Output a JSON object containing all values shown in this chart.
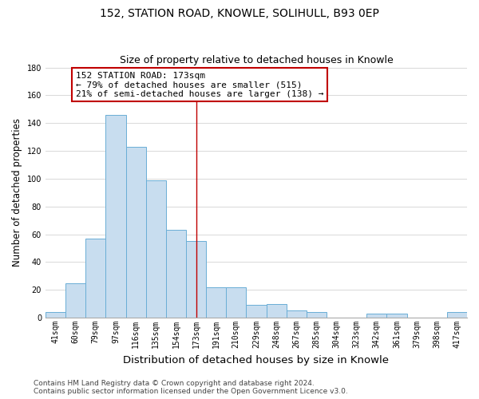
{
  "title": "152, STATION ROAD, KNOWLE, SOLIHULL, B93 0EP",
  "subtitle": "Size of property relative to detached houses in Knowle",
  "xlabel": "Distribution of detached houses by size in Knowle",
  "ylabel": "Number of detached properties",
  "bin_labels": [
    "41sqm",
    "60sqm",
    "79sqm",
    "97sqm",
    "116sqm",
    "135sqm",
    "154sqm",
    "173sqm",
    "191sqm",
    "210sqm",
    "229sqm",
    "248sqm",
    "267sqm",
    "285sqm",
    "304sqm",
    "323sqm",
    "342sqm",
    "361sqm",
    "379sqm",
    "398sqm",
    "417sqm"
  ],
  "bar_heights": [
    4,
    25,
    57,
    146,
    123,
    99,
    63,
    55,
    22,
    22,
    9,
    10,
    5,
    4,
    0,
    0,
    3,
    3,
    0,
    0,
    4
  ],
  "bar_color": "#c8ddef",
  "bar_edge_color": "#6aaed6",
  "highlight_x_label": "173sqm",
  "highlight_line_color": "#c00000",
  "annotation_title": "152 STATION ROAD: 173sqm",
  "annotation_line1": "← 79% of detached houses are smaller (515)",
  "annotation_line2": "21% of semi-detached houses are larger (138) →",
  "annotation_box_edge_color": "#c00000",
  "annotation_box_face_color": "#ffffff",
  "ylim": [
    0,
    180
  ],
  "yticks": [
    0,
    20,
    40,
    60,
    80,
    100,
    120,
    140,
    160,
    180
  ],
  "footer_line1": "Contains HM Land Registry data © Crown copyright and database right 2024.",
  "footer_line2": "Contains public sector information licensed under the Open Government Licence v3.0.",
  "background_color": "#ffffff",
  "grid_color": "#d8d8d8",
  "title_fontsize": 10,
  "subtitle_fontsize": 9,
  "xlabel_fontsize": 9.5,
  "ylabel_fontsize": 8.5,
  "tick_fontsize": 7,
  "annotation_fontsize": 8,
  "footer_fontsize": 6.5
}
